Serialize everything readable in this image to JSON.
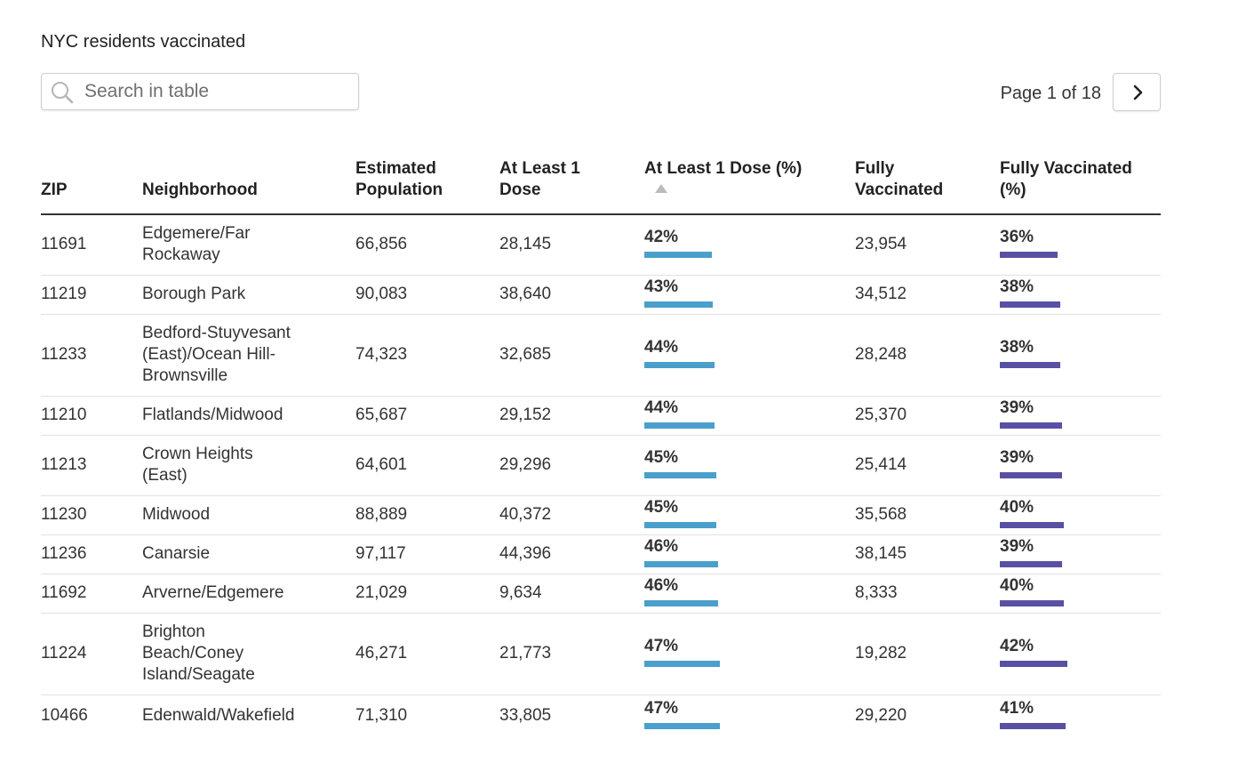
{
  "title": "NYC residents vaccinated",
  "search": {
    "placeholder": "Search in table",
    "value": ""
  },
  "pagination": {
    "label": "Page 1 of 18",
    "current_page": 1,
    "total_pages": 18
  },
  "colors": {
    "dose_bar": "#4a9fcc",
    "full_bar": "#5851a3"
  },
  "table": {
    "headers": {
      "zip": "ZIP",
      "neighborhood": "Neighborhood",
      "population": "Estimated Population",
      "dose1": "At Least 1 Dose",
      "dose1_pct": "At Least 1 Dose (%)",
      "full": "Fully Vaccinated",
      "full_pct": "Fully Vaccinated (%)"
    },
    "sorted_by": "dose1_pct",
    "sort_direction": "ascending",
    "rows": [
      {
        "zip": "11691",
        "neighborhood": "Edgemere/Far Rockaway",
        "population": "66,856",
        "dose1": "28,145",
        "dose1_pct": "42%",
        "full": "23,954",
        "full_pct": "36%"
      },
      {
        "zip": "11219",
        "neighborhood": "Borough Park",
        "population": "90,083",
        "dose1": "38,640",
        "dose1_pct": "43%",
        "full": "34,512",
        "full_pct": "38%"
      },
      {
        "zip": "11233",
        "neighborhood": "Bedford-Stuyvesant (East)/Ocean Hill-Brownsville",
        "population": "74,323",
        "dose1": "32,685",
        "dose1_pct": "44%",
        "full": "28,248",
        "full_pct": "38%"
      },
      {
        "zip": "11210",
        "neighborhood": "Flatlands/Midwood",
        "population": "65,687",
        "dose1": "29,152",
        "dose1_pct": "44%",
        "full": "25,370",
        "full_pct": "39%"
      },
      {
        "zip": "11213",
        "neighborhood": "Crown Heights (East)",
        "population": "64,601",
        "dose1": "29,296",
        "dose1_pct": "45%",
        "full": "25,414",
        "full_pct": "39%"
      },
      {
        "zip": "11230",
        "neighborhood": "Midwood",
        "population": "88,889",
        "dose1": "40,372",
        "dose1_pct": "45%",
        "full": "35,568",
        "full_pct": "40%"
      },
      {
        "zip": "11236",
        "neighborhood": "Canarsie",
        "population": "97,117",
        "dose1": "44,396",
        "dose1_pct": "46%",
        "full": "38,145",
        "full_pct": "39%"
      },
      {
        "zip": "11692",
        "neighborhood": "Arverne/Edgemere",
        "population": "21,029",
        "dose1": "9,634",
        "dose1_pct": "46%",
        "full": "8,333",
        "full_pct": "40%"
      },
      {
        "zip": "11224",
        "neighborhood": "Brighton Beach/Coney Island/Seagate",
        "population": "46,271",
        "dose1": "21,773",
        "dose1_pct": "47%",
        "full": "19,282",
        "full_pct": "42%"
      },
      {
        "zip": "10466",
        "neighborhood": "Edenwald/Wakefield",
        "population": "71,310",
        "dose1": "33,805",
        "dose1_pct": "47%",
        "full": "29,220",
        "full_pct": "41%"
      }
    ]
  }
}
